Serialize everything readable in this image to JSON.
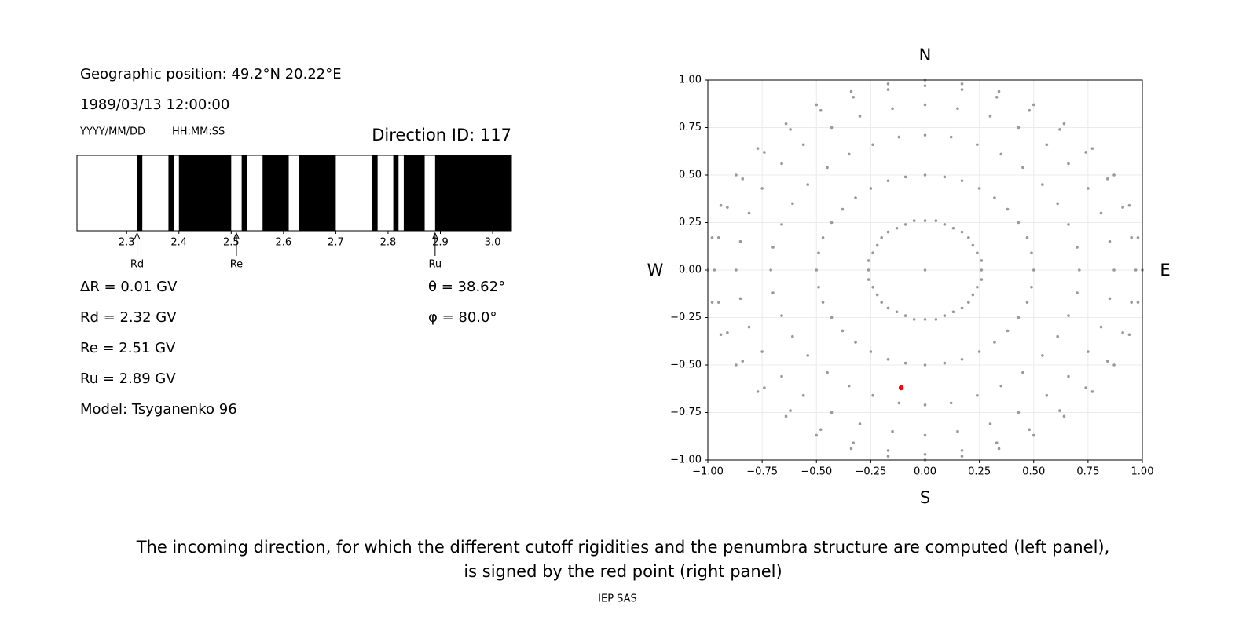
{
  "header": {
    "position": "Geographic position: 49.2°N 20.22°E",
    "datetime": "1989/03/13 12:00:00",
    "date_format": "YYYY/MM/DD",
    "time_format": "HH:MM:SS",
    "direction": "Direction ID: 117"
  },
  "results": {
    "left": [
      "ΔR = 0.01 GV",
      "Rd = 2.32 GV",
      "Re = 2.51 GV",
      "Ru = 2.89 GV",
      "Model: Tsyganenko 96"
    ],
    "right": [
      "θ = 38.62°",
      "φ = 80.0°"
    ]
  },
  "caption": [
    "The incoming direction, for which the different cutoff rigidities and the penumbra structure are computed (left panel),",
    "is signed by the red point (right panel)"
  ],
  "footer": "IEP SAS",
  "chart_data": [
    {
      "type": "band",
      "color": "#000000",
      "xlim": [
        2.205,
        3.036
      ],
      "xticks": [
        2.3,
        2.4,
        2.5,
        2.6,
        2.7,
        2.8,
        2.9,
        {
          "value": 3,
          "label": "3.0"
        }
      ],
      "bands": [
        [
          2.32,
          2.33
        ],
        [
          2.38,
          2.39
        ],
        [
          2.4,
          2.5
        ],
        [
          2.52,
          2.53
        ],
        [
          2.56,
          2.61
        ],
        [
          2.63,
          2.7
        ],
        [
          2.77,
          2.78
        ],
        [
          2.81,
          2.82
        ],
        [
          2.83,
          2.87
        ],
        [
          2.89,
          3.036
        ]
      ],
      "markers": [
        {
          "label": "Rd",
          "value": 2.32
        },
        {
          "label": "Re",
          "value": 2.51
        },
        {
          "label": "Ru",
          "value": 2.89
        }
      ]
    },
    {
      "type": "scatter",
      "grid": true,
      "directions": {
        "north": "N",
        "south": "S",
        "west": "W",
        "east": "E"
      },
      "xlim": [
        -1,
        1
      ],
      "ylim": [
        -1,
        1
      ],
      "xticks": [
        {
          "value": -1,
          "label": "−1.00"
        },
        {
          "value": -0.75,
          "label": "−0.75"
        },
        {
          "value": -0.5,
          "label": "−0.50"
        },
        {
          "value": -0.25,
          "label": "−0.25"
        },
        {
          "value": 0,
          "label": "0.00"
        },
        {
          "value": 0.25,
          "label": "0.25"
        },
        {
          "value": 0.5,
          "label": "0.50"
        },
        {
          "value": 0.75,
          "label": "0.75"
        },
        {
          "value": 1,
          "label": "1.00"
        }
      ],
      "yticks": [
        {
          "value": -1,
          "label": "−1.00"
        },
        {
          "value": -0.75,
          "label": "−0.75"
        },
        {
          "value": -0.5,
          "label": "−0.50"
        },
        {
          "value": -0.25,
          "label": "−0.25"
        },
        {
          "value": 0,
          "label": "0.00"
        },
        {
          "value": 0.25,
          "label": "0.25"
        },
        {
          "value": 0.5,
          "label": "0.50"
        },
        {
          "value": 0.75,
          "label": "0.75"
        },
        {
          "value": 1,
          "label": "1.00"
        }
      ],
      "series": [
        {
          "color": "#999999",
          "x": [
            0,
            0.26,
            0.26,
            0.24,
            0.22,
            0.2,
            0.17,
            0.13,
            0.09,
            0.05,
            0,
            -0.05,
            -0.09,
            -0.13,
            -0.17,
            -0.2,
            -0.22,
            -0.24,
            -0.26,
            -0.26,
            -0.26,
            -0.24,
            -0.22,
            -0.2,
            -0.17,
            -0.13,
            -0.09,
            -0.05,
            0,
            0.05,
            0.09,
            0.13,
            0.17,
            0.2,
            0.22,
            0.24,
            0.26,
            0.5,
            0.49,
            0.47,
            0.43,
            0.38,
            0.32,
            0.25,
            0.17,
            0.09,
            0,
            -0.09,
            -0.17,
            -0.25,
            -0.32,
            -0.38,
            -0.43,
            -0.47,
            -0.49,
            -0.5,
            -0.49,
            -0.47,
            -0.43,
            -0.38,
            -0.32,
            -0.25,
            -0.17,
            -0.09,
            0,
            0.09,
            0.17,
            0.25,
            0.32,
            0.38,
            0.43,
            0.47,
            0.49,
            0.71,
            0.7,
            0.66,
            0.61,
            0.54,
            0.45,
            0.35,
            0.24,
            0.12,
            0,
            -0.12,
            -0.24,
            -0.35,
            -0.45,
            -0.54,
            -0.61,
            -0.66,
            -0.7,
            -0.71,
            -0.7,
            -0.66,
            -0.61,
            -0.54,
            -0.45,
            -0.35,
            -0.24,
            -0.12,
            0,
            0.12,
            0.24,
            0.35,
            0.45,
            0.54,
            0.61,
            0.66,
            0.7,
            0.87,
            0.85,
            0.81,
            0.75,
            0.66,
            0.56,
            0.43,
            0.3,
            0.15,
            0,
            -0.15,
            -0.3,
            -0.43,
            -0.56,
            -0.66,
            -0.75,
            -0.81,
            -0.85,
            -0.87,
            -0.85,
            -0.81,
            -0.75,
            -0.66,
            -0.56,
            -0.43,
            -0.3,
            -0.15,
            0,
            0.15,
            0.3,
            0.43,
            0.56,
            0.66,
            0.75,
            0.81,
            0.85,
            0.97,
            0.95,
            0.91,
            0.84,
            0.74,
            0.62,
            0.48,
            0.33,
            0.17,
            0,
            -0.17,
            -0.33,
            -0.48,
            -0.62,
            -0.74,
            -0.84,
            -0.91,
            -0.95,
            -0.97,
            -0.95,
            -0.91,
            -0.84,
            -0.74,
            -0.62,
            -0.48,
            -0.33,
            -0.17,
            0,
            0.17,
            0.33,
            0.48,
            0.62,
            0.74,
            0.84,
            0.91,
            0.95,
            1,
            0.98,
            0.94,
            0.87,
            0.77,
            0.64,
            0.5,
            0.34,
            0.17,
            0,
            -0.17,
            -0.34,
            -0.5,
            -0.64,
            -0.77,
            -0.87,
            -0.94,
            -0.98,
            -1,
            -0.98,
            -0.94,
            -0.87,
            -0.77,
            -0.64,
            -0.5,
            -0.34,
            -0.17,
            0,
            0.17,
            0.34,
            0.5,
            0.64,
            0.77,
            0.87,
            0.94,
            0.98
          ],
          "y": [
            0,
            0,
            0.05,
            0.09,
            0.13,
            0.17,
            0.2,
            0.22,
            0.24,
            0.26,
            0.26,
            0.26,
            0.24,
            0.22,
            0.2,
            0.17,
            0.13,
            0.09,
            0.05,
            0,
            -0.05,
            -0.09,
            -0.13,
            -0.17,
            -0.2,
            -0.22,
            -0.24,
            -0.26,
            -0.26,
            -0.26,
            -0.24,
            -0.22,
            -0.2,
            -0.17,
            -0.13,
            -0.09,
            -0.05,
            0,
            0.09,
            0.17,
            0.25,
            0.32,
            0.38,
            0.43,
            0.47,
            0.49,
            0.5,
            0.49,
            0.47,
            0.43,
            0.38,
            0.32,
            0.25,
            0.17,
            0.09,
            0,
            -0.09,
            -0.17,
            -0.25,
            -0.32,
            -0.38,
            -0.43,
            -0.47,
            -0.49,
            -0.5,
            -0.49,
            -0.47,
            -0.43,
            -0.38,
            -0.32,
            -0.25,
            -0.17,
            -0.09,
            0,
            0.12,
            0.24,
            0.35,
            0.45,
            0.54,
            0.61,
            0.66,
            0.7,
            0.71,
            0.7,
            0.66,
            0.61,
            0.54,
            0.45,
            0.35,
            0.24,
            0.12,
            0,
            -0.12,
            -0.24,
            -0.35,
            -0.45,
            -0.54,
            -0.61,
            -0.66,
            -0.7,
            -0.71,
            -0.7,
            -0.66,
            -0.61,
            -0.54,
            -0.45,
            -0.35,
            -0.24,
            -0.12,
            0,
            0.15,
            0.3,
            0.43,
            0.56,
            0.66,
            0.75,
            0.81,
            0.85,
            0.87,
            0.85,
            0.81,
            0.75,
            0.66,
            0.56,
            0.43,
            0.3,
            0.15,
            0,
            -0.15,
            -0.3,
            -0.43,
            -0.56,
            -0.66,
            -0.75,
            -0.81,
            -0.85,
            -0.87,
            -0.85,
            -0.81,
            -0.75,
            -0.66,
            -0.56,
            -0.43,
            -0.3,
            -0.15,
            0,
            0.17,
            0.33,
            0.48,
            0.62,
            0.74,
            0.84,
            0.91,
            0.95,
            0.97,
            0.95,
            0.91,
            0.84,
            0.74,
            0.62,
            0.48,
            0.33,
            0.17,
            0,
            -0.17,
            -0.33,
            -0.48,
            -0.62,
            -0.74,
            -0.84,
            -0.91,
            -0.95,
            -0.97,
            -0.95,
            -0.91,
            -0.84,
            -0.74,
            -0.62,
            -0.48,
            -0.33,
            -0.17,
            0,
            0.17,
            0.34,
            0.5,
            0.64,
            0.77,
            0.87,
            0.94,
            0.98,
            1,
            0.98,
            0.94,
            0.87,
            0.77,
            0.64,
            0.5,
            0.34,
            0.17,
            0,
            -0.17,
            -0.34,
            -0.5,
            -0.64,
            -0.77,
            -0.87,
            -0.94,
            -0.98,
            -1,
            -0.98,
            -0.94,
            -0.87,
            -0.77,
            -0.64,
            -0.5,
            -0.34,
            -0.17
          ]
        },
        {
          "color": "#ff0000",
          "x": [
            -0.11
          ],
          "y": [
            -0.62
          ]
        }
      ]
    }
  ]
}
